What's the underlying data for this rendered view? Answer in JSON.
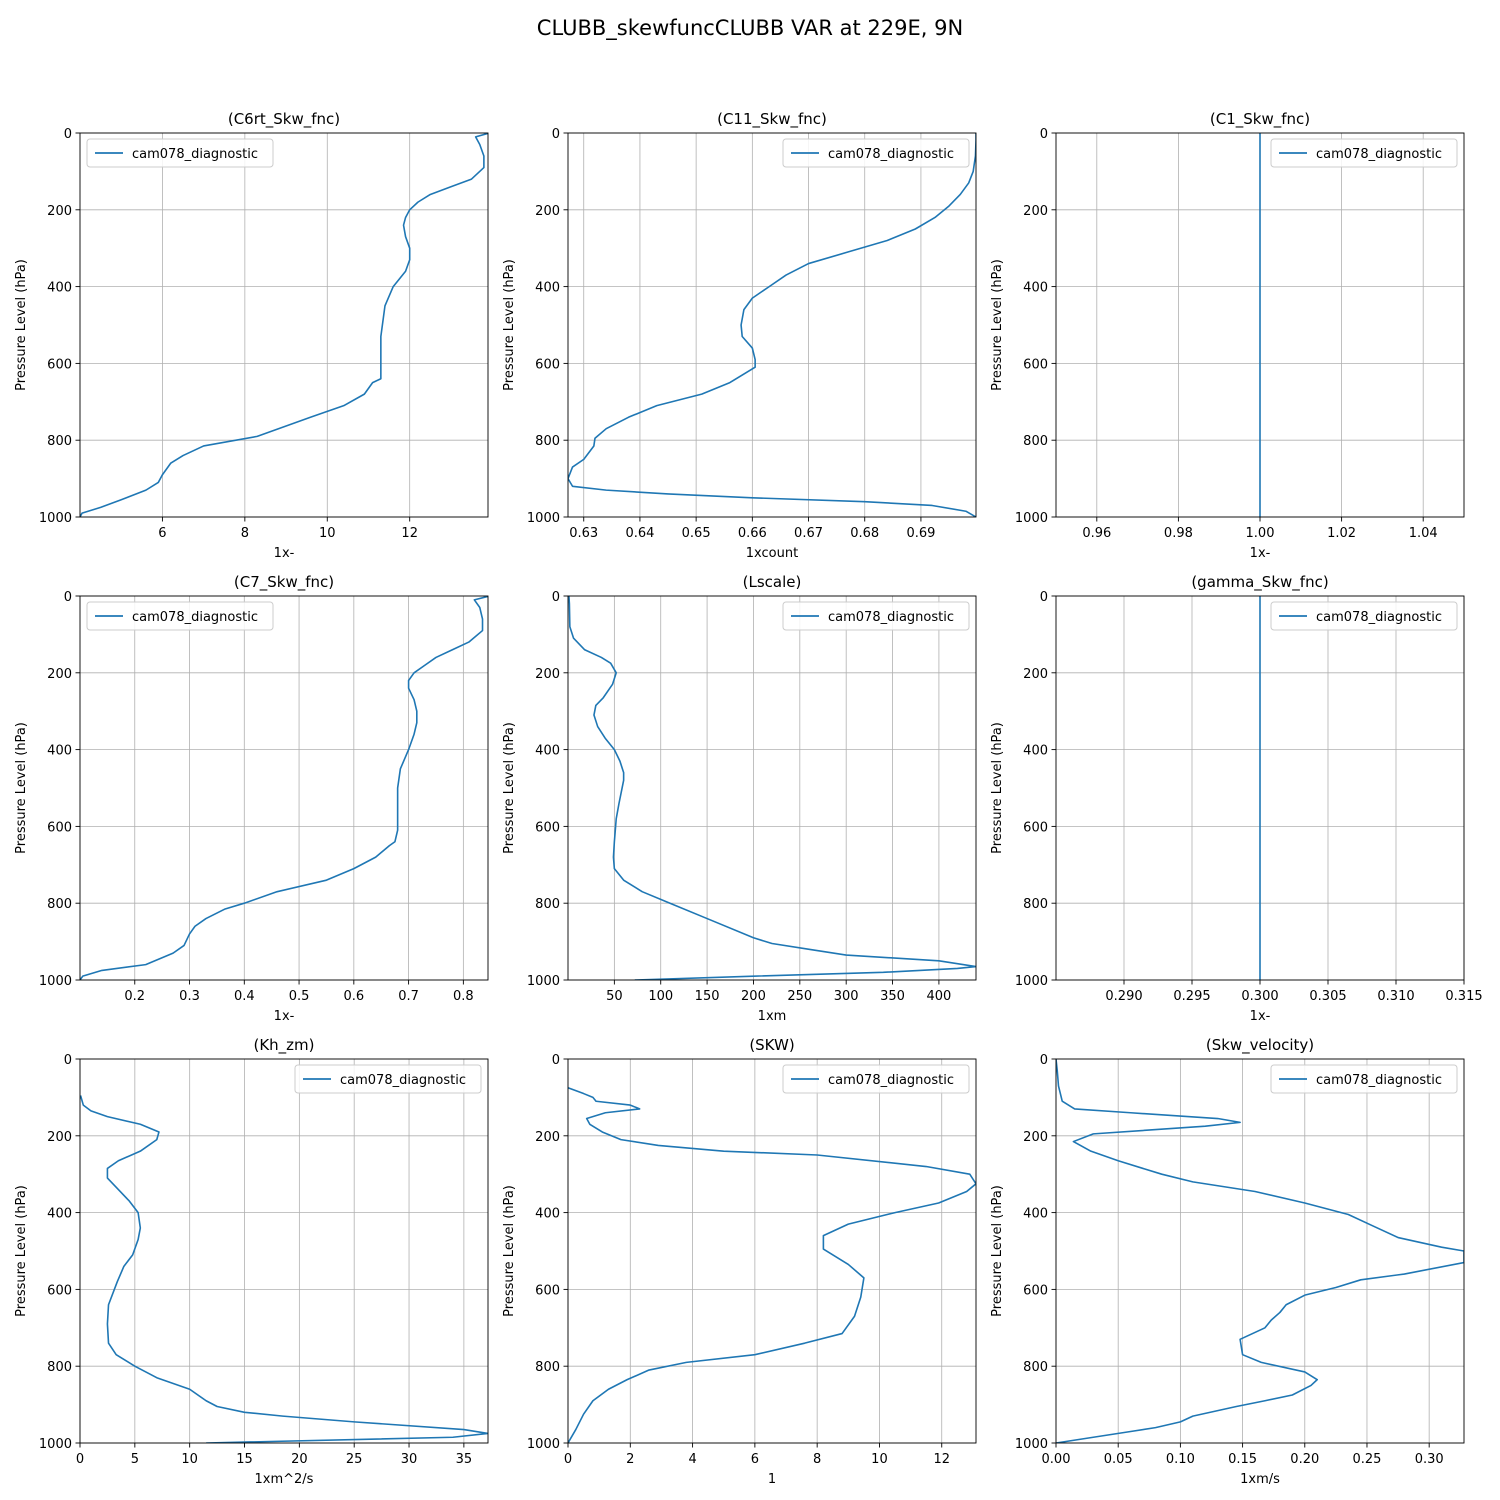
{
  "figure": {
    "title": "CLUBB_skewfuncCLUBB VAR at 229E, 9N",
    "line_color": "#1f77b4"
  },
  "chart_data": [
    {
      "type": "line",
      "title": "(C6rt_Skw_fnc)",
      "xlabel": "1x-",
      "ylabel": "Pressure Level (hPa)",
      "xlim": [
        4.0,
        13.9
      ],
      "ylim": [
        1000,
        0
      ],
      "y_inverted": true,
      "grid": true,
      "legend_position": "upper-left",
      "xticks": [
        6,
        8,
        10,
        12
      ],
      "xtick_labels": [
        "6",
        "8",
        "10",
        "12"
      ],
      "yticks": [
        0,
        200,
        400,
        600,
        800,
        1000
      ],
      "ytick_labels": [
        "0",
        "200",
        "400",
        "600",
        "800",
        "1000"
      ],
      "series": [
        {
          "name": "cam078_diagnostic",
          "x": [
            13.9,
            13.6,
            13.7,
            13.8,
            13.8,
            13.5,
            13.0,
            12.5,
            12.2,
            12.0,
            11.9,
            11.85,
            11.9,
            12.0,
            12.0,
            11.9,
            11.6,
            11.4,
            11.3,
            11.3,
            11.3,
            11.1,
            10.9,
            10.4,
            9.6,
            8.3,
            7.0,
            6.5,
            6.2,
            6.0,
            5.9,
            5.6,
            5.0,
            4.5,
            4.05,
            4.0
          ],
          "y": [
            1,
            10,
            30,
            60,
            90,
            120,
            140,
            160,
            180,
            200,
            220,
            240,
            270,
            300,
            330,
            360,
            400,
            450,
            530,
            610,
            640,
            650,
            680,
            710,
            740,
            790,
            815,
            840,
            860,
            890,
            910,
            930,
            955,
            975,
            990,
            1000
          ]
        }
      ]
    },
    {
      "type": "line",
      "title": "(C11_Skw_fnc)",
      "xlabel": "1xcount",
      "ylabel": "Pressure Level (hPa)",
      "xlim": [
        0.6272,
        0.6998
      ],
      "ylim": [
        1000,
        0
      ],
      "y_inverted": true,
      "grid": true,
      "legend_position": "upper-right",
      "xticks": [
        0.63,
        0.64,
        0.65,
        0.66,
        0.67,
        0.68,
        0.69
      ],
      "xtick_labels": [
        "0.63",
        "0.64",
        "0.65",
        "0.66",
        "0.67",
        "0.68",
        "0.69"
      ],
      "yticks": [
        0,
        200,
        400,
        600,
        800,
        1000
      ],
      "ytick_labels": [
        "0",
        "200",
        "400",
        "600",
        "800",
        "1000"
      ],
      "series": [
        {
          "name": "cam078_diagnostic",
          "x": [
            0.6998,
            0.6998,
            0.6997,
            0.6993,
            0.6985,
            0.697,
            0.695,
            0.6925,
            0.689,
            0.684,
            0.677,
            0.67,
            0.666,
            0.663,
            0.66,
            0.6585,
            0.658,
            0.6582,
            0.66,
            0.6605,
            0.6605,
            0.656,
            0.651,
            0.643,
            0.638,
            0.634,
            0.632,
            0.6318,
            0.63,
            0.628,
            0.6272,
            0.628,
            0.634,
            0.645,
            0.66,
            0.68,
            0.692,
            0.698,
            0.6998
          ],
          "y": [
            1,
            20,
            60,
            100,
            130,
            160,
            190,
            220,
            250,
            280,
            310,
            340,
            370,
            400,
            430,
            460,
            500,
            530,
            560,
            590,
            610,
            650,
            680,
            710,
            740,
            770,
            795,
            815,
            850,
            870,
            900,
            920,
            930,
            940,
            950,
            960,
            970,
            985,
            1000
          ]
        }
      ]
    },
    {
      "type": "line",
      "title": "(C1_Skw_fnc)",
      "xlabel": "1x-",
      "ylabel": "Pressure Level (hPa)",
      "xlim": [
        0.95,
        1.05
      ],
      "ylim": [
        1000,
        0
      ],
      "y_inverted": true,
      "grid": true,
      "legend_position": "upper-right",
      "xticks": [
        0.96,
        0.98,
        1.0,
        1.02,
        1.04
      ],
      "xtick_labels": [
        "0.96",
        "0.98",
        "1.00",
        "1.02",
        "1.04"
      ],
      "yticks": [
        0,
        200,
        400,
        600,
        800,
        1000
      ],
      "ytick_labels": [
        "0",
        "200",
        "400",
        "600",
        "800",
        "1000"
      ],
      "series": [
        {
          "name": "cam078_diagnostic",
          "x": [
            1.0,
            1.0
          ],
          "y": [
            0,
            1000
          ]
        }
      ]
    },
    {
      "type": "line",
      "title": "(C7_Skw_fnc)",
      "xlabel": "1x-",
      "ylabel": "Pressure Level (hPa)",
      "xlim": [
        0.1,
        0.845
      ],
      "ylim": [
        1000,
        0
      ],
      "y_inverted": true,
      "grid": true,
      "legend_position": "upper-left",
      "xticks": [
        0.2,
        0.3,
        0.4,
        0.5,
        0.6,
        0.7,
        0.8
      ],
      "xtick_labels": [
        "0.2",
        "0.3",
        "0.4",
        "0.5",
        "0.6",
        "0.7",
        "0.8"
      ],
      "yticks": [
        0,
        200,
        400,
        600,
        800,
        1000
      ],
      "ytick_labels": [
        "0",
        "200",
        "400",
        "600",
        "800",
        "1000"
      ],
      "series": [
        {
          "name": "cam078_diagnostic",
          "x": [
            0.845,
            0.82,
            0.83,
            0.835,
            0.835,
            0.81,
            0.78,
            0.75,
            0.73,
            0.71,
            0.7,
            0.7,
            0.71,
            0.715,
            0.715,
            0.71,
            0.7,
            0.685,
            0.68,
            0.68,
            0.68,
            0.675,
            0.665,
            0.64,
            0.6,
            0.55,
            0.46,
            0.4,
            0.365,
            0.33,
            0.31,
            0.3,
            0.29,
            0.27,
            0.22,
            0.14,
            0.105,
            0.1
          ],
          "y": [
            1,
            10,
            30,
            60,
            90,
            120,
            140,
            160,
            180,
            200,
            220,
            240,
            270,
            300,
            330,
            360,
            400,
            450,
            500,
            530,
            610,
            640,
            650,
            680,
            710,
            740,
            770,
            800,
            815,
            840,
            860,
            880,
            910,
            930,
            960,
            975,
            990,
            1000
          ]
        }
      ]
    },
    {
      "type": "line",
      "title": "(Lscale)",
      "xlabel": "1xm",
      "ylabel": "Pressure Level (hPa)",
      "xlim": [
        0,
        440
      ],
      "ylim": [
        1000,
        0
      ],
      "y_inverted": true,
      "grid": true,
      "legend_position": "upper-right",
      "xticks": [
        50,
        100,
        150,
        200,
        250,
        300,
        350,
        400
      ],
      "xtick_labels": [
        "50",
        "100",
        "150",
        "200",
        "250",
        "300",
        "350",
        "400"
      ],
      "yticks": [
        0,
        200,
        400,
        600,
        800,
        1000
      ],
      "ytick_labels": [
        "0",
        "200",
        "400",
        "600",
        "800",
        "1000"
      ],
      "series": [
        {
          "name": "cam078_diagnostic",
          "x": [
            1,
            1.5,
            2,
            6,
            18,
            36,
            46,
            52,
            48,
            38,
            30,
            28,
            32,
            40,
            50,
            56,
            60,
            60,
            55,
            52,
            50,
            49,
            50,
            60,
            80,
            110,
            150,
            200,
            220,
            260,
            300,
            400,
            440,
            420,
            340,
            200,
            72
          ],
          "y": [
            0,
            20,
            80,
            110,
            140,
            160,
            175,
            200,
            230,
            265,
            285,
            310,
            340,
            370,
            400,
            430,
            460,
            480,
            540,
            580,
            640,
            680,
            710,
            740,
            770,
            800,
            840,
            890,
            905,
            920,
            935,
            950,
            965,
            970,
            980,
            990,
            1000
          ]
        }
      ]
    },
    {
      "type": "line",
      "title": "(gamma_Skw_fnc)",
      "xlabel": "1x-",
      "ylabel": "Pressure Level (hPa)",
      "xlim": [
        0.285,
        0.315
      ],
      "ylim": [
        1000,
        0
      ],
      "y_inverted": true,
      "grid": true,
      "legend_position": "upper-right",
      "xticks": [
        0.29,
        0.295,
        0.3,
        0.305,
        0.31,
        0.315
      ],
      "xtick_labels": [
        "0.290",
        "0.295",
        "0.300",
        "0.305",
        "0.310",
        "0.315"
      ],
      "yticks": [
        0,
        200,
        400,
        600,
        800,
        1000
      ],
      "ytick_labels": [
        "0",
        "200",
        "400",
        "600",
        "800",
        "1000"
      ],
      "series": [
        {
          "name": "cam078_diagnostic",
          "x": [
            0.3,
            0.3
          ],
          "y": [
            0,
            1000
          ]
        }
      ]
    },
    {
      "type": "line",
      "title": "(Kh_zm)",
      "xlabel": "1xm^2/s",
      "ylabel": "Pressure Level (hPa)",
      "xlim": [
        0,
        37.2
      ],
      "ylim": [
        1000,
        0
      ],
      "y_inverted": true,
      "grid": true,
      "legend_position": "upper-right",
      "xticks": [
        0,
        5,
        10,
        15,
        20,
        25,
        30,
        35
      ],
      "xtick_labels": [
        "0",
        "5",
        "10",
        "15",
        "20",
        "25",
        "30",
        "35"
      ],
      "yticks": [
        0,
        200,
        400,
        600,
        800,
        1000
      ],
      "ytick_labels": [
        "0",
        "200",
        "400",
        "600",
        "800",
        "1000"
      ],
      "series": [
        {
          "name": "cam078_diagnostic",
          "x": [
            0.05,
            0.3,
            1.0,
            2.5,
            5.5,
            7.2,
            7.0,
            5.5,
            3.5,
            2.5,
            2.5,
            3.5,
            4.5,
            5.3,
            5.5,
            5.3,
            4.8,
            4.0,
            3.4,
            2.6,
            2.5,
            2.6,
            3.3,
            5.0,
            7.0,
            10.0,
            11.5,
            12.5,
            15.0,
            18.5,
            25.0,
            35.0,
            37.2,
            34.0,
            11.5
          ],
          "y": [
            95,
            120,
            135,
            150,
            170,
            190,
            210,
            240,
            265,
            285,
            310,
            340,
            370,
            400,
            440,
            470,
            510,
            540,
            580,
            640,
            690,
            740,
            770,
            800,
            830,
            860,
            890,
            905,
            920,
            930,
            945,
            965,
            975,
            985,
            1000
          ]
        }
      ]
    },
    {
      "type": "line",
      "title": "(SKW)",
      "xlabel": "1",
      "ylabel": "Pressure Level (hPa)",
      "xlim": [
        0,
        13.1
      ],
      "ylim": [
        1000,
        0
      ],
      "y_inverted": true,
      "grid": true,
      "legend_position": "upper-right",
      "xticks": [
        0,
        2,
        4,
        6,
        8,
        10,
        12
      ],
      "xtick_labels": [
        "0",
        "2",
        "4",
        "6",
        "8",
        "10",
        "12"
      ],
      "yticks": [
        0,
        200,
        400,
        600,
        800,
        1000
      ],
      "ytick_labels": [
        "0",
        "200",
        "400",
        "600",
        "800",
        "1000"
      ],
      "series": [
        {
          "name": "cam078_diagnostic",
          "x": [
            0.0,
            0.5,
            0.8,
            0.9,
            2.0,
            2.3,
            1.2,
            0.6,
            0.7,
            1.1,
            1.7,
            2.9,
            5.0,
            8.0,
            11.5,
            12.9,
            13.1,
            12.8,
            11.9,
            10.5,
            9.0,
            8.2,
            8.2,
            9.0,
            9.5,
            9.4,
            9.2,
            8.8,
            7.6,
            6.0,
            3.8,
            2.6,
            1.9,
            1.3,
            0.8,
            0.5,
            0.25,
            0.0
          ],
          "y": [
            75,
            90,
            100,
            110,
            120,
            130,
            140,
            155,
            170,
            190,
            210,
            225,
            240,
            250,
            280,
            300,
            325,
            345,
            375,
            400,
            430,
            460,
            495,
            535,
            570,
            620,
            670,
            715,
            740,
            770,
            790,
            810,
            835,
            860,
            890,
            925,
            965,
            1000
          ]
        }
      ]
    },
    {
      "type": "line",
      "title": "(Skw_velocity)",
      "xlabel": "1xm/s",
      "ylabel": "Pressure Level (hPa)",
      "xlim": [
        0,
        0.328
      ],
      "ylim": [
        1000,
        0
      ],
      "y_inverted": true,
      "grid": true,
      "legend_position": "upper-right",
      "xticks": [
        0.0,
        0.05,
        0.1,
        0.15,
        0.2,
        0.25,
        0.3
      ],
      "xtick_labels": [
        "0.00",
        "0.05",
        "0.10",
        "0.15",
        "0.20",
        "0.25",
        "0.30"
      ],
      "yticks": [
        0,
        200,
        400,
        600,
        800,
        1000
      ],
      "ytick_labels": [
        "0",
        "200",
        "400",
        "600",
        "800",
        "1000"
      ],
      "series": [
        {
          "name": "cam078_diagnostic",
          "x": [
            0.0,
            0.001,
            0.002,
            0.005,
            0.015,
            0.06,
            0.13,
            0.148,
            0.12,
            0.03,
            0.014,
            0.028,
            0.05,
            0.085,
            0.11,
            0.16,
            0.2,
            0.235,
            0.255,
            0.275,
            0.31,
            0.328,
            0.328,
            0.28,
            0.245,
            0.225,
            0.2,
            0.185,
            0.18,
            0.173,
            0.168,
            0.148,
            0.15,
            0.165,
            0.2,
            0.21,
            0.205,
            0.19,
            0.168,
            0.145,
            0.11,
            0.1,
            0.08,
            0.06,
            0.03,
            0.0
          ],
          "y": [
            0,
            30,
            70,
            110,
            130,
            140,
            155,
            165,
            175,
            195,
            215,
            240,
            265,
            300,
            320,
            345,
            375,
            405,
            435,
            465,
            490,
            500,
            530,
            560,
            575,
            595,
            615,
            640,
            660,
            680,
            700,
            730,
            770,
            790,
            815,
            835,
            850,
            875,
            890,
            905,
            930,
            945,
            960,
            970,
            985,
            1000
          ]
        }
      ]
    }
  ]
}
